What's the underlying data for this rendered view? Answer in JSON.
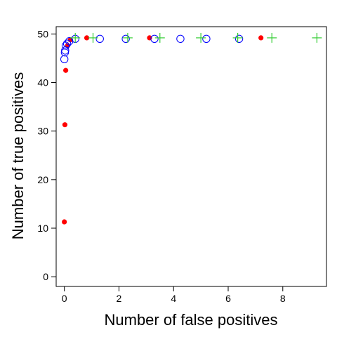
{
  "chart_data": {
    "type": "scatter",
    "title": "",
    "xlabel": "Number of false positives",
    "ylabel": "Number of true positives",
    "xlim": [
      -0.3,
      9.6
    ],
    "ylim": [
      -2,
      51.5
    ],
    "xticks": [
      0,
      2,
      4,
      6,
      8
    ],
    "yticks": [
      0,
      10,
      20,
      30,
      40,
      50
    ],
    "grid": false,
    "legend": "none",
    "series": [
      {
        "marker": "filled-circle",
        "color": "#ff0000",
        "points": [
          {
            "x": 0.0,
            "y": 11.3
          },
          {
            "x": 0.02,
            "y": 31.3
          },
          {
            "x": 0.05,
            "y": 42.5
          },
          {
            "x": 0.12,
            "y": 47.6
          },
          {
            "x": 0.22,
            "y": 48.8
          },
          {
            "x": 0.82,
            "y": 49.2
          },
          {
            "x": 3.12,
            "y": 49.2
          },
          {
            "x": 7.2,
            "y": 49.2
          }
        ]
      },
      {
        "marker": "open-circle",
        "color": "#0000ff",
        "points": [
          {
            "x": 0.0,
            "y": 44.8
          },
          {
            "x": 0.02,
            "y": 46.2
          },
          {
            "x": 0.03,
            "y": 46.6
          },
          {
            "x": 0.05,
            "y": 47.6
          },
          {
            "x": 0.1,
            "y": 48.0
          },
          {
            "x": 0.18,
            "y": 48.5
          },
          {
            "x": 0.4,
            "y": 49.0
          },
          {
            "x": 1.3,
            "y": 49.0
          },
          {
            "x": 2.25,
            "y": 49.0
          },
          {
            "x": 3.3,
            "y": 49.0
          },
          {
            "x": 4.25,
            "y": 49.0
          },
          {
            "x": 5.2,
            "y": 49.0
          },
          {
            "x": 6.4,
            "y": 49.0
          }
        ]
      },
      {
        "marker": "plus",
        "color": "#33cc33",
        "points": [
          {
            "x": 0.4,
            "y": 49.2
          },
          {
            "x": 1.05,
            "y": 49.2
          },
          {
            "x": 2.32,
            "y": 49.2
          },
          {
            "x": 3.5,
            "y": 49.2
          },
          {
            "x": 5.0,
            "y": 49.2
          },
          {
            "x": 6.35,
            "y": 49.2
          },
          {
            "x": 7.6,
            "y": 49.2
          },
          {
            "x": 9.25,
            "y": 49.2
          }
        ]
      }
    ]
  }
}
